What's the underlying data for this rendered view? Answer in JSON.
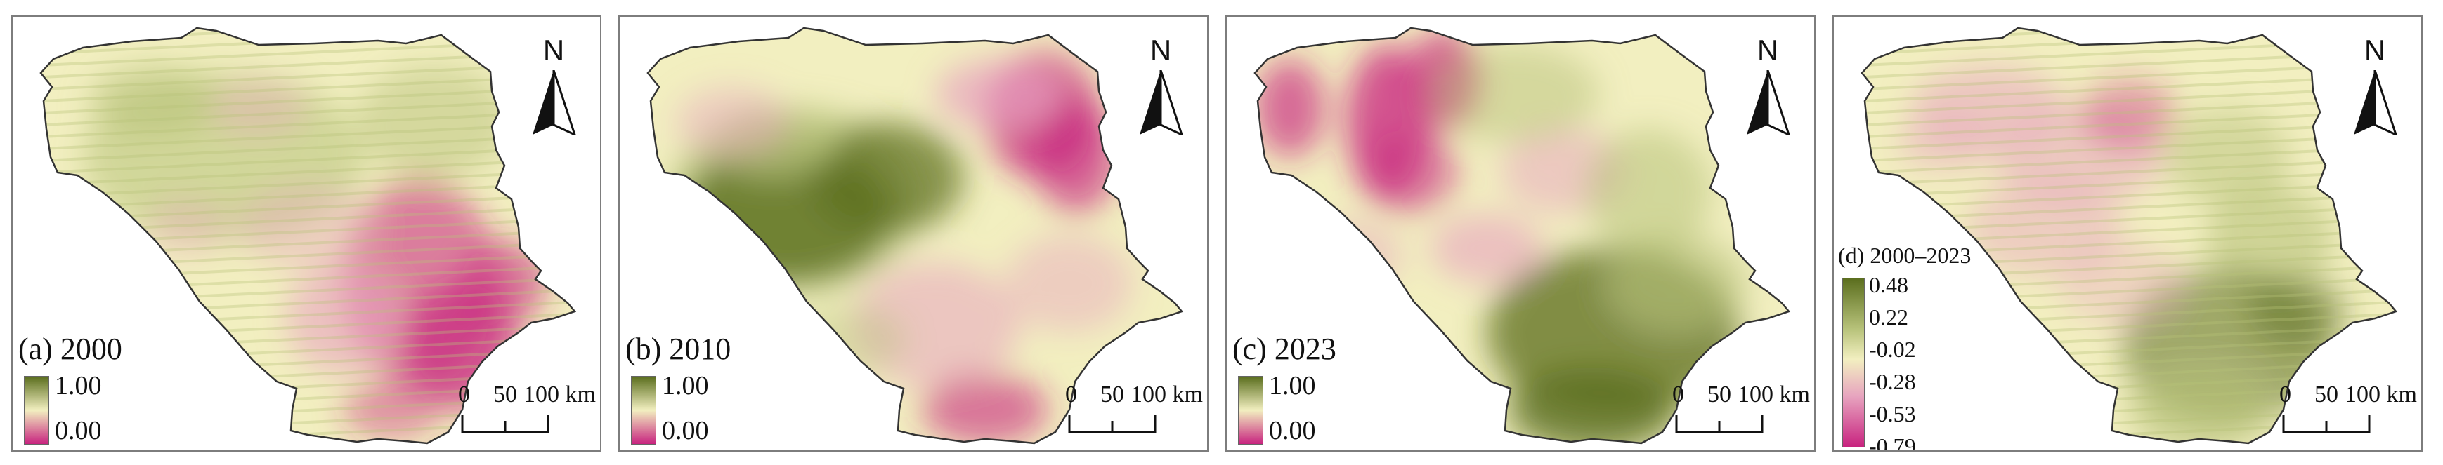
{
  "panels": [
    {
      "id": "a",
      "label": "(a) 2000",
      "legend_max": "1.00",
      "legend_min": "0.00",
      "north": "N",
      "scale": {
        "s0": "0",
        "s1": "50",
        "s2": "100 km"
      },
      "dominant": "mixed-pink-east",
      "stripes": true
    },
    {
      "id": "b",
      "label": "(b) 2010",
      "legend_max": "1.00",
      "legend_min": "0.00",
      "north": "N",
      "scale": {
        "s0": "0",
        "s1": "50",
        "s2": "100 km"
      },
      "dominant": "green-west",
      "stripes": false
    },
    {
      "id": "c",
      "label": "(c) 2023",
      "legend_max": "1.00",
      "legend_min": "0.00",
      "north": "N",
      "scale": {
        "s0": "0",
        "s1": "50",
        "s2": "100 km"
      },
      "dominant": "green-south",
      "stripes": false
    },
    {
      "id": "d",
      "label": "(d) 2000–2023",
      "legend_ticks": [
        "0.48",
        "0.22",
        "-0.02",
        "-0.28",
        "-0.53",
        "-0.79"
      ],
      "north": "N",
      "scale": {
        "s0": "0",
        "s1": "50",
        "s2": "100 km"
      },
      "dominant": "green-southeast",
      "stripes": true
    }
  ],
  "colors": {
    "high": "#5b6e1e",
    "mid_high": "#b7c27a",
    "mid": "#f2efc0",
    "mid_low": "#e7a4bf",
    "low": "#c8237f",
    "border": "#333333"
  }
}
